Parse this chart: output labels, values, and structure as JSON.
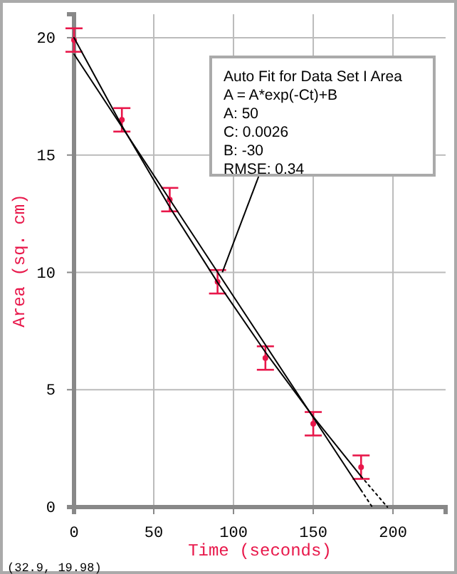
{
  "chart_data": {
    "type": "scatter",
    "xlabel": "Time (seconds)",
    "ylabel": "Area (sq. cm)",
    "xlim": [
      0,
      233
    ],
    "ylim": [
      0,
      21
    ],
    "xticks": [
      0,
      50,
      100,
      150,
      200
    ],
    "yticks": [
      0,
      5,
      10,
      15,
      20
    ],
    "grid": true,
    "series": [
      {
        "color": "#e8174a",
        "marker": "circle",
        "x": [
          0,
          30,
          60,
          90,
          120,
          150,
          180
        ],
        "values": [
          19.9,
          16.5,
          13.1,
          9.6,
          6.35,
          3.55,
          1.7
        ],
        "errors": [
          0.5,
          0.5,
          0.5,
          0.5,
          0.5,
          0.5,
          0.5
        ]
      },
      {
        "type": "line",
        "color": "#000000",
        "line_style": "solid",
        "x": [
          0,
          30,
          60,
          90,
          120,
          150,
          180
        ],
        "values": [
          20,
          16.25,
          12.78,
          9.57,
          6.6,
          3.85,
          1.31
        ]
      },
      {
        "type": "line",
        "color": "#000000",
        "line_style": "dotted",
        "x": [
          180,
          196.5
        ],
        "values": [
          1.31,
          0
        ]
      },
      {
        "type": "line",
        "color": "#000000",
        "line_style": "solid",
        "x": [
          0,
          180
        ],
        "values": [
          19.3,
          0.72
        ]
      },
      {
        "type": "line",
        "color": "#000000",
        "line_style": "dotted",
        "x": [
          180,
          187
        ],
        "values": [
          0.72,
          0
        ]
      }
    ],
    "annotations": [
      {
        "text": "Auto Fit for  Data Set I Area\nA = A*exp(-Ct)+B\nA: 50\nC: 0.0026\nB: -30\nRMSE: 0.34",
        "x": 93,
        "y": 10
      },
      "(32.9, 19.98)"
    ]
  }
}
